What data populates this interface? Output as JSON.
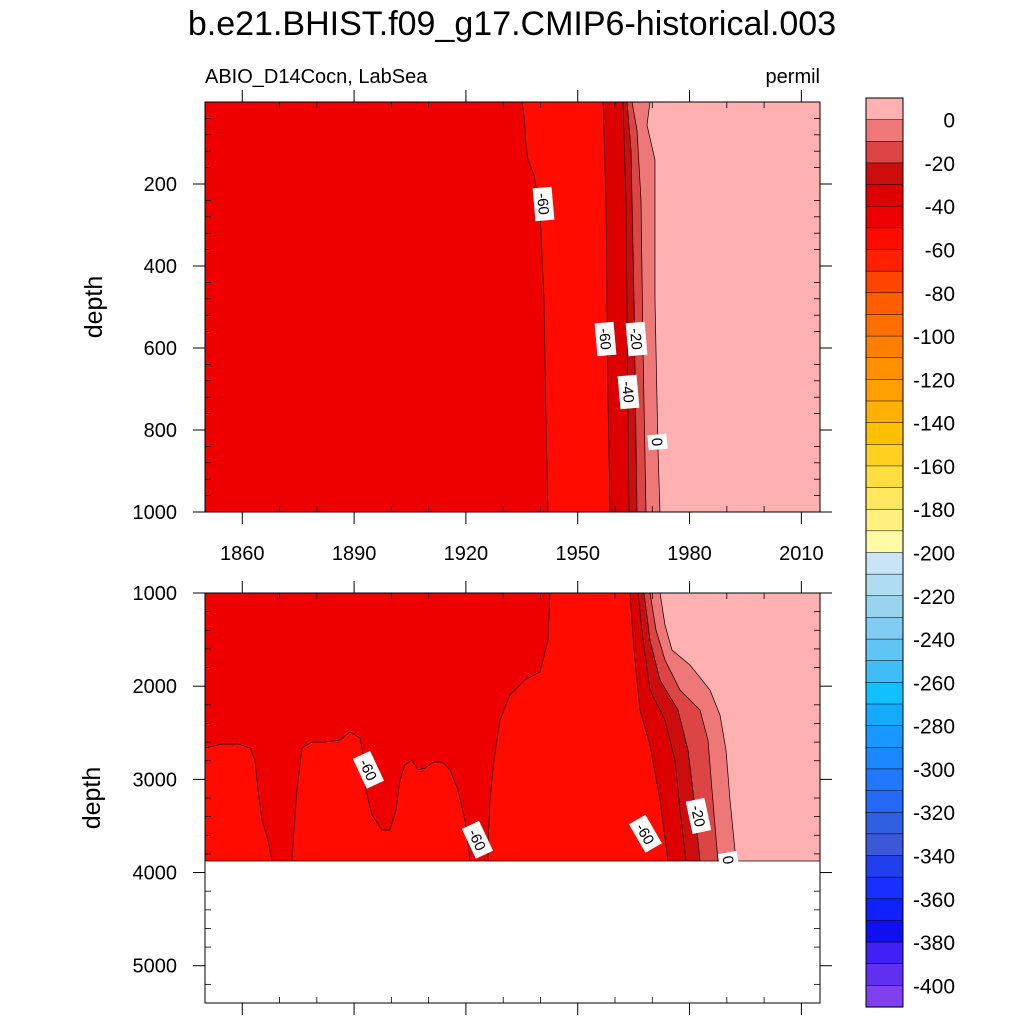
{
  "chart_data": {
    "type": "heatmap",
    "title": "b.e21.BHIST.f09_g17.CMIP6-historical.003",
    "subtitle_left": "ABIO_D14Cocn, LabSea",
    "subtitle_right": "permil",
    "x_axis": {
      "ticks": [
        1860,
        1890,
        1920,
        1950,
        1980,
        2010
      ],
      "range": [
        1850,
        2015
      ]
    },
    "panels": [
      {
        "name": "upper",
        "ylabel": "depth",
        "ylim": [
          0,
          1000
        ],
        "y_ticks": [
          200,
          400,
          600,
          800,
          1000
        ],
        "contour_labels": [
          "-60",
          "-60",
          "-20",
          "-40",
          "0"
        ],
        "regions": [
          {
            "level": "-60 to -50",
            "years_from": 1850,
            "years_to": 1943,
            "color": "#ee0000"
          },
          {
            "level": "-70 to -60",
            "years_from": 1943,
            "years_to": 1958,
            "color": "#ff0b00"
          },
          {
            "level": "-50 to -10",
            "years_from": 1958,
            "years_to": 1965,
            "color": "#dd0000"
          },
          {
            "level": "-10 to 0",
            "years_from": 1965,
            "years_to": 1970,
            "color": "#ee7777"
          },
          {
            "level": "> 0",
            "years_from": 1970,
            "years_to": 2015,
            "color": "#ffb0b0"
          }
        ]
      },
      {
        "name": "lower",
        "ylabel": "depth",
        "ylim": [
          1000,
          5400
        ],
        "y_ticks": [
          1000,
          2000,
          3000,
          4000,
          5000
        ],
        "data_bottom": 3870,
        "contour_labels": [
          "-60",
          "-60",
          "-60",
          "-20",
          "0"
        ]
      }
    ],
    "colorbar": {
      "labels": [
        "0",
        "-20",
        "-40",
        "-60",
        "-80",
        "-100",
        "-120",
        "-140",
        "-160",
        "-180",
        "-200",
        "-220",
        "-240",
        "-260",
        "-280",
        "-300",
        "-320",
        "-340",
        "-360",
        "-380",
        "-400"
      ],
      "colors": [
        "#ffb0b0",
        "#ee7777",
        "#dd4444",
        "#cc0d0d",
        "#dd0000",
        "#ee0000",
        "#ff0b00",
        "#ff2200",
        "#ff4400",
        "#ff5e00",
        "#ff6e00",
        "#ff8000",
        "#ff9000",
        "#ffa000",
        "#ffb000",
        "#ffc000",
        "#ffd020",
        "#ffdf40",
        "#ffe860",
        "#fff080",
        "#fffaa8",
        "#c8e4f6",
        "#b0dcf2",
        "#98d4ee",
        "#80ccf2",
        "#60c4f4",
        "#40bcf6",
        "#10c0ff",
        "#14aaff",
        "#1898ff",
        "#1c88ff",
        "#2078ff",
        "#2468f4",
        "#3060e0",
        "#3a58d8",
        "#2040ee",
        "#1830ff",
        "#1020ff",
        "#1010ee",
        "#4020f4",
        "#6030f0",
        "#8040f0"
      ]
    }
  }
}
